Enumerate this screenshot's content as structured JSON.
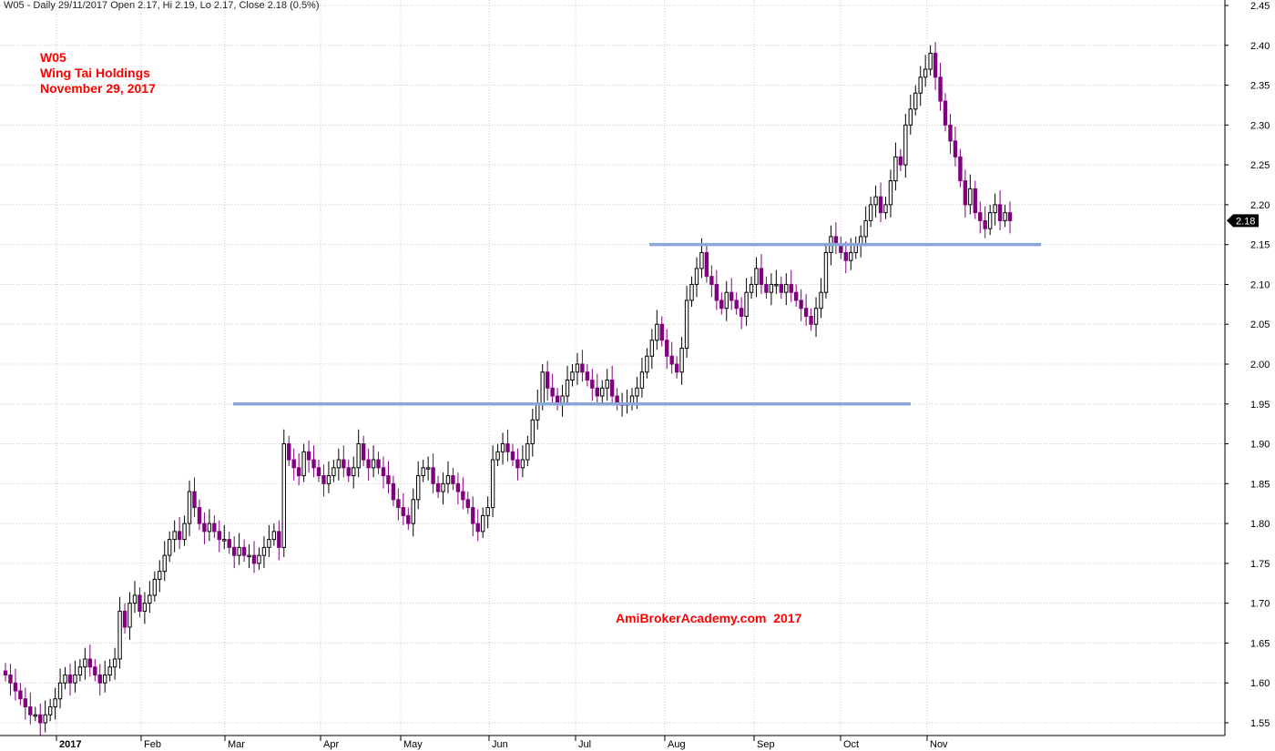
{
  "header": "W05 - Daily 29/11/2017 Open 2.17, Hi 2.19, Lo 2.17, Close 2.18 (0.5%)",
  "annotations": {
    "symbol": "W05",
    "company": "Wing Tai Holdings",
    "date": "November 29, 2017"
  },
  "watermark": "AmiBrokerAcademy.com  2017",
  "colors": {
    "up_candle": "#ffffff",
    "down_candle": "#800080",
    "candle_outline": "#000000",
    "support_line": "#8aa6d8",
    "annotation_text": "#ff0000",
    "grid": "#c8c8c8"
  },
  "chart_data": {
    "type": "candlestick",
    "x_labels": [
      "2017",
      "Feb",
      "Mar",
      "Apr",
      "May",
      "Jun",
      "Jul",
      "Aug",
      "Sep",
      "Oct",
      "Nov"
    ],
    "y_ticks": [
      "2.45",
      "2.40",
      "2.35",
      "2.30",
      "2.25",
      "2.20",
      "2.15",
      "2.10",
      "2.05",
      "2.00",
      "1.95",
      "1.90",
      "1.85",
      "1.80",
      "1.75",
      "1.70",
      "1.65",
      "1.60",
      "1.55"
    ],
    "ylim": [
      1.55,
      2.45
    ],
    "grid": true,
    "last_price_label": "2.18",
    "support_lines": [
      {
        "price": 1.95,
        "from": "Mar",
        "to": "Oct"
      },
      {
        "price": 2.15,
        "from": "Jul",
        "to": "Nov"
      }
    ],
    "closes": [
      1.61,
      1.6,
      1.59,
      1.58,
      1.57,
      1.56,
      1.56,
      1.55,
      1.56,
      1.57,
      1.58,
      1.6,
      1.61,
      1.6,
      1.61,
      1.62,
      1.63,
      1.62,
      1.61,
      1.6,
      1.61,
      1.62,
      1.63,
      1.69,
      1.67,
      1.7,
      1.71,
      1.69,
      1.7,
      1.71,
      1.73,
      1.74,
      1.76,
      1.78,
      1.79,
      1.78,
      1.8,
      1.84,
      1.82,
      1.8,
      1.79,
      1.8,
      1.79,
      1.78,
      1.78,
      1.77,
      1.76,
      1.77,
      1.76,
      1.76,
      1.75,
      1.76,
      1.77,
      1.78,
      1.79,
      1.77,
      1.9,
      1.88,
      1.87,
      1.86,
      1.89,
      1.88,
      1.87,
      1.86,
      1.85,
      1.86,
      1.87,
      1.88,
      1.87,
      1.86,
      1.87,
      1.9,
      1.88,
      1.87,
      1.88,
      1.87,
      1.86,
      1.85,
      1.83,
      1.82,
      1.81,
      1.8,
      1.83,
      1.86,
      1.87,
      1.87,
      1.85,
      1.84,
      1.85,
      1.86,
      1.85,
      1.84,
      1.83,
      1.82,
      1.8,
      1.79,
      1.81,
      1.82,
      1.88,
      1.89,
      1.9,
      1.89,
      1.88,
      1.87,
      1.88,
      1.9,
      1.93,
      1.95,
      1.99,
      1.97,
      1.96,
      1.95,
      1.96,
      1.98,
      1.99,
      2.0,
      1.99,
      1.98,
      1.97,
      1.96,
      1.97,
      1.98,
      1.96,
      1.95,
      1.95,
      1.95,
      1.96,
      1.97,
      1.99,
      2.01,
      2.03,
      2.05,
      2.03,
      2.01,
      2.0,
      1.99,
      2.02,
      2.08,
      2.1,
      2.12,
      2.14,
      2.11,
      2.1,
      2.08,
      2.07,
      2.09,
      2.08,
      2.07,
      2.06,
      2.09,
      2.1,
      2.12,
      2.1,
      2.09,
      2.1,
      2.1,
      2.09,
      2.1,
      2.09,
      2.08,
      2.07,
      2.06,
      2.05,
      2.07,
      2.09,
      2.14,
      2.16,
      2.15,
      2.14,
      2.13,
      2.14,
      2.15,
      2.16,
      2.18,
      2.2,
      2.21,
      2.19,
      2.2,
      2.23,
      2.26,
      2.25,
      2.3,
      2.32,
      2.34,
      2.36,
      2.37,
      2.39,
      2.36,
      2.33,
      2.3,
      2.28,
      2.26,
      2.23,
      2.2,
      2.22,
      2.19,
      2.18,
      2.17,
      2.19,
      2.2,
      2.18,
      2.19,
      2.18
    ]
  }
}
